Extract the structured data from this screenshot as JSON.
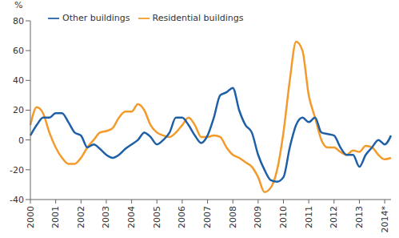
{
  "chart_data": {
    "type": "line",
    "y_label": "%",
    "categories": [
      "2000",
      null,
      null,
      null,
      "2001",
      null,
      null,
      null,
      "2002",
      null,
      null,
      null,
      "2003",
      null,
      null,
      null,
      "2004",
      null,
      null,
      null,
      "2005",
      null,
      null,
      null,
      "2006",
      null,
      null,
      null,
      "2007",
      null,
      null,
      null,
      "2008",
      null,
      null,
      null,
      "2009",
      null,
      null,
      null,
      "2010",
      null,
      null,
      null,
      "2011",
      null,
      null,
      null,
      "2012",
      null,
      null,
      null,
      "2013",
      null,
      null,
      null,
      "2014*",
      null
    ],
    "series": [
      {
        "name": "Residential buildings",
        "color": "#f39a2b",
        "values": [
          10,
          22,
          18,
          5,
          -5,
          -12,
          -16,
          -16,
          -12,
          -5,
          0,
          5,
          6,
          8,
          15,
          19,
          19,
          24,
          20,
          10,
          5,
          3,
          2,
          5,
          10,
          15,
          10,
          2,
          2,
          3,
          2,
          -5,
          -10,
          -12,
          -15,
          -18,
          -25,
          -35,
          -32,
          -20,
          5,
          40,
          66,
          60,
          30,
          15,
          0,
          -5,
          -5,
          -8,
          -10,
          -7,
          -8,
          -4,
          -5,
          -10,
          -13,
          -12
        ]
      },
      {
        "name": "Other buildings",
        "color": "#1f5fa6",
        "values": [
          3,
          10,
          15,
          15,
          18,
          18,
          12,
          5,
          3,
          -5,
          -3,
          -6,
          -10,
          -12,
          -10,
          -6,
          -3,
          0,
          5,
          2,
          -3,
          0,
          5,
          15,
          15,
          10,
          3,
          -2,
          3,
          15,
          30,
          32,
          35,
          20,
          10,
          5,
          -10,
          -20,
          -27,
          -28,
          -25,
          -5,
          10,
          15,
          12,
          15,
          5,
          4,
          3,
          -5,
          -10,
          -10,
          -18,
          -10,
          -5,
          0,
          -3,
          3
        ]
      }
    ],
    "ylim": [
      -40,
      80
    ],
    "yticks": [
      -40,
      -20,
      0,
      20,
      40,
      60,
      80
    ],
    "grid": false,
    "legend": "upper left"
  }
}
